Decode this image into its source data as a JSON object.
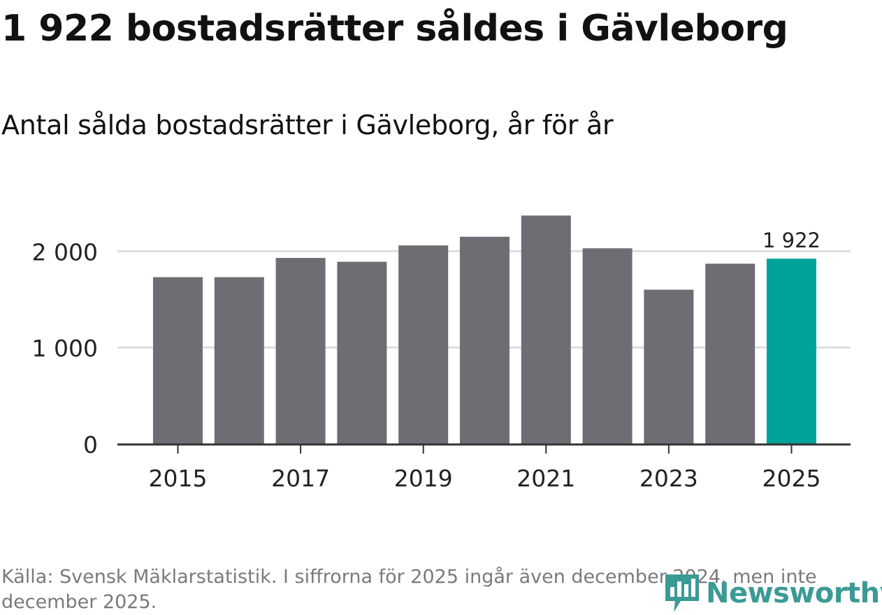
{
  "title": "1 922 bostadsrätter såldes i Gävleborg",
  "subtitle": "Antal sålda bostadsrätter i Gävleborg, år för år",
  "footnote": "Källa: Svensk Mäklarstatistik. I siffrorna för 2025 ingår även december 2024, men inte december 2025.",
  "brand": {
    "name": "Newsworthy",
    "icon": "newsworthy-logo-icon",
    "color": "#3c9a95"
  },
  "colors": {
    "bar": "#6e6d74",
    "highlight": "#00a39a",
    "grid": "#dddddd",
    "axis": "#333333",
    "text": "#222222"
  },
  "chart_data": {
    "type": "bar",
    "title": "1 922 bostadsrätter såldes i Gävleborg",
    "subtitle": "Antal sålda bostadsrätter i Gävleborg, år för år",
    "xlabel": "",
    "ylabel": "",
    "categories": [
      "2015",
      "2016",
      "2017",
      "2018",
      "2019",
      "2020",
      "2021",
      "2022",
      "2023",
      "2024",
      "2025"
    ],
    "values": [
      1730,
      1730,
      1930,
      1890,
      2060,
      2150,
      2370,
      2030,
      1600,
      1870,
      1922
    ],
    "highlight_index": 10,
    "highlight_label": "1 922",
    "x_tick_labels": [
      "2015",
      "2017",
      "2019",
      "2021",
      "2023",
      "2025"
    ],
    "y_ticks": [
      0,
      1000,
      2000
    ],
    "y_tick_labels": [
      "0",
      "1 000",
      "2 000"
    ],
    "ylim": [
      0,
      2600
    ],
    "grid": true,
    "legend": "none"
  }
}
